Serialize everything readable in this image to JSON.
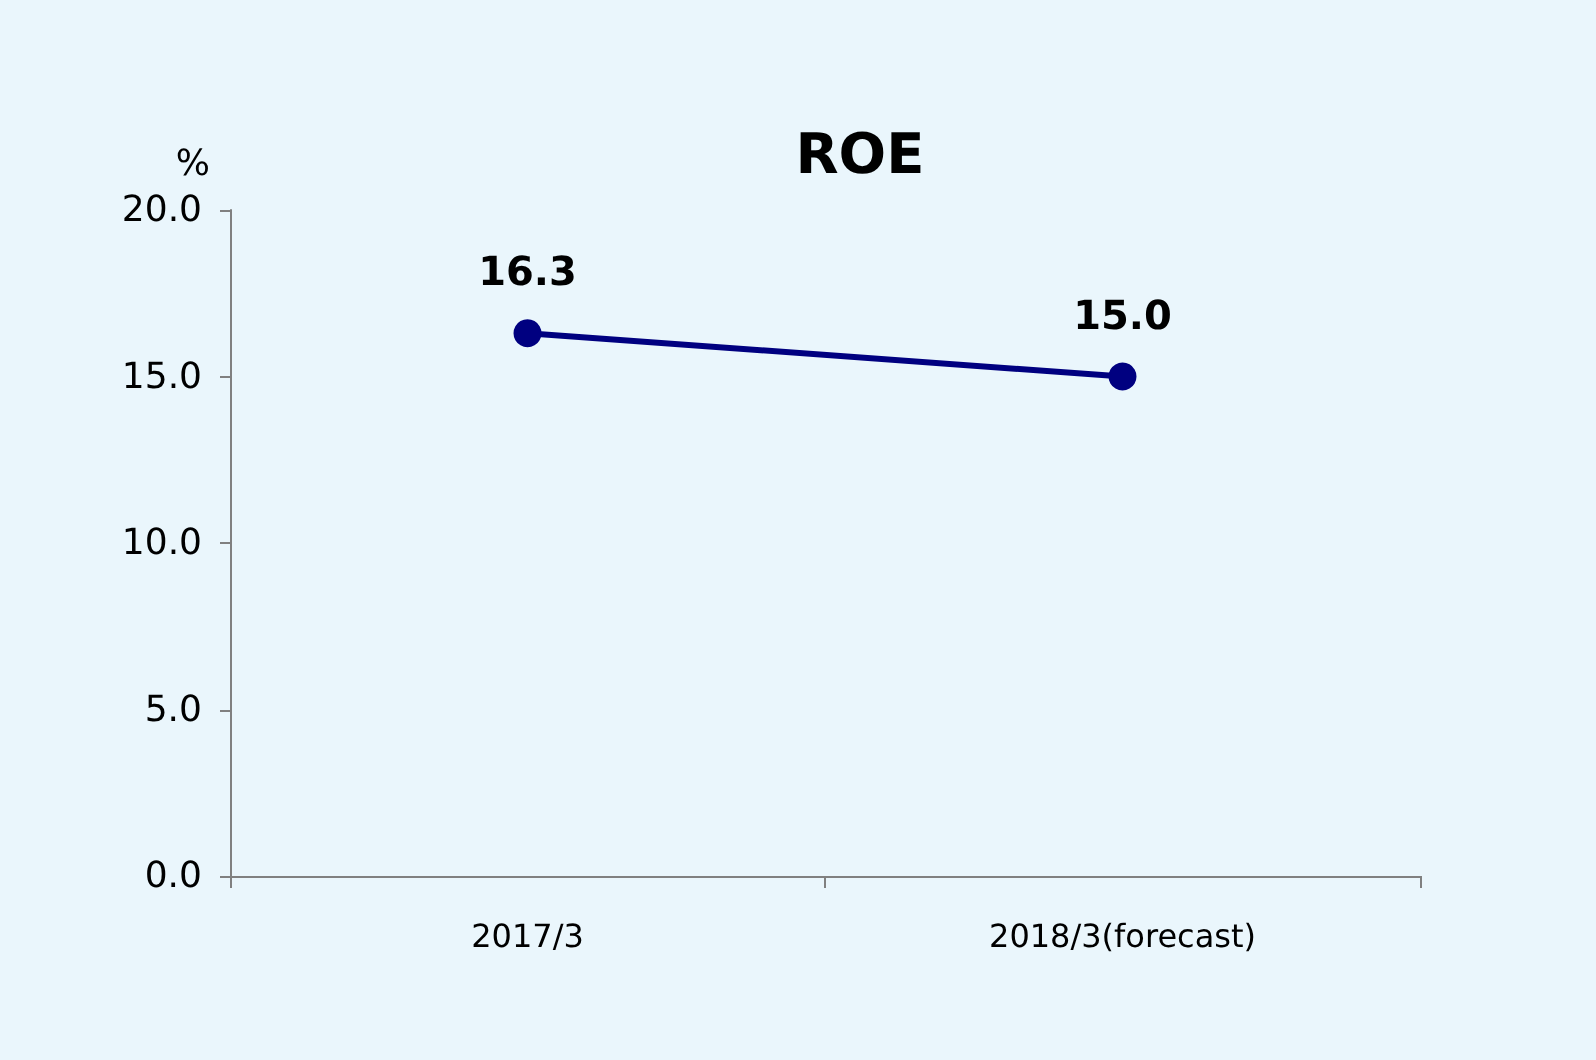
{
  "chart_data": {
    "type": "line",
    "title": "ROE",
    "ylabel": "%",
    "categories": [
      "2017/3",
      "2018/3(forecast)"
    ],
    "series": [
      {
        "color": "#000080",
        "values": [
          16.3,
          15.0
        ],
        "value_labels": [
          "16.3",
          "15.0"
        ]
      }
    ],
    "ylim": [
      0,
      20
    ],
    "yticks": [
      {
        "value": 0,
        "label": "0.0"
      },
      {
        "value": 5,
        "label": "5.0"
      },
      {
        "value": 10,
        "label": "10.0"
      },
      {
        "value": 15,
        "label": "15.0"
      },
      {
        "value": 20,
        "label": "20.0"
      }
    ],
    "grid": false,
    "marker": "circle",
    "line_style": "solid"
  }
}
